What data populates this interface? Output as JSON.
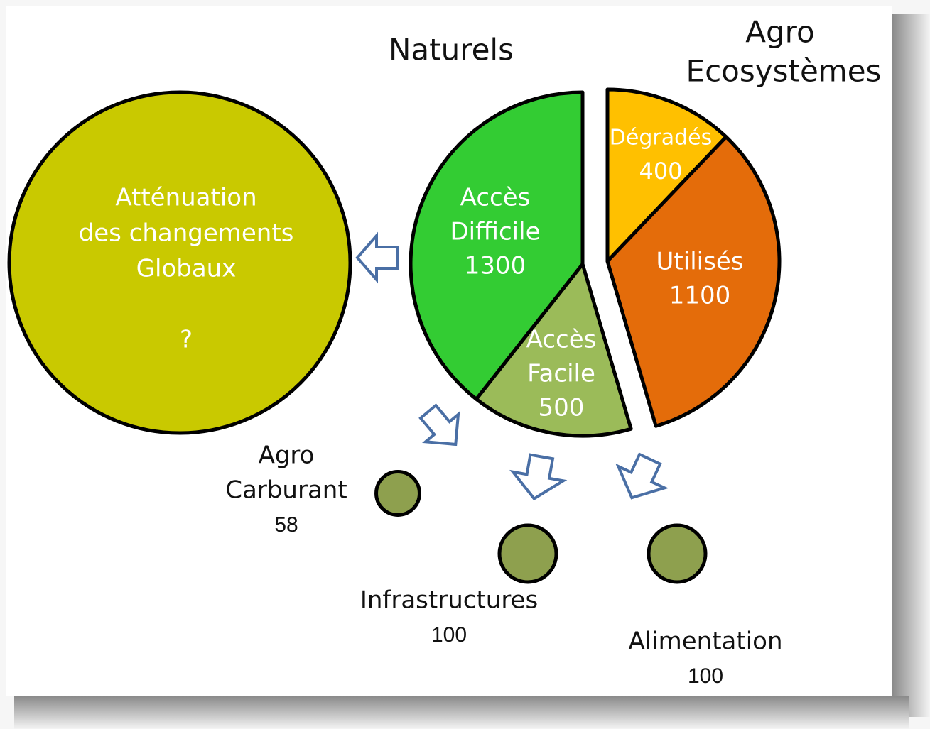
{
  "headings": {
    "naturels": "Naturels",
    "agro": [
      "Agro",
      "Ecosystèmes"
    ]
  },
  "mitigation": {
    "lines": [
      "Atténuation",
      "des changements",
      "Globaux"
    ],
    "value": "?"
  },
  "pie": {
    "sectors": [
      {
        "label": [
          "Dégradés"
        ],
        "value": 400,
        "color": "#ffc000"
      },
      {
        "label": [
          "Utilisés"
        ],
        "value": 1100,
        "color": "#e46c0a"
      },
      {
        "label": [
          "Accès",
          "Facile"
        ],
        "value": 500,
        "color": "#9bbb59"
      },
      {
        "label": [
          "Accès",
          "Difficile"
        ],
        "value": 1300,
        "color": "#33cc33"
      }
    ]
  },
  "uses": [
    {
      "label": [
        "Agro",
        "Carburant"
      ],
      "value": 58
    },
    {
      "label": [
        "Infrastructures"
      ],
      "value": 100
    },
    {
      "label": [
        "Alimentation"
      ],
      "value": 100
    }
  ]
}
